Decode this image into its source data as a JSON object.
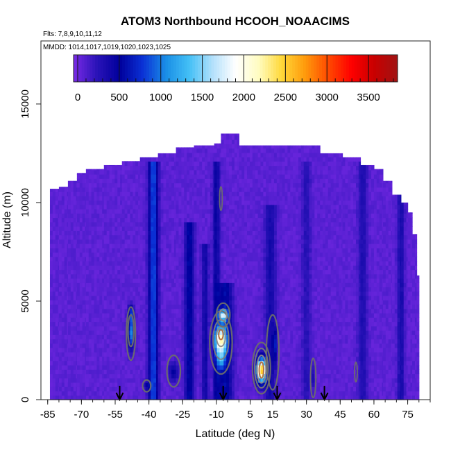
{
  "chart_data": {
    "type": "heatmap",
    "title": "ATOM3 Northbound HCOOH_NOAACIMS",
    "subtitle_flights": "Flts: 7,8,9,10,11,12",
    "subtitle_dates": "MMDD: 1014,1017,1019,1020,1023,1025",
    "xlabel": "Latitude (deg N)",
    "ylabel": "Altitude (m)",
    "xlim": [
      -88,
      85
    ],
    "ylim": [
      0,
      17500
    ],
    "x_tick_labels": [
      "-85",
      "-70",
      "-55",
      "-40",
      "-25",
      "-10",
      "5",
      "15",
      "30",
      "45",
      "60",
      "75"
    ],
    "y_tick_labels": [
      "0",
      "5000",
      "10000",
      "15000"
    ],
    "colorbar": {
      "min": -50,
      "max": 3850,
      "tick_labels": [
        "0",
        "500",
        "1000",
        "1500",
        "2000",
        "2500",
        "3000",
        "3500"
      ],
      "colors": [
        "#7a2ae6",
        "#2a13b8",
        "#00009c",
        "#0b32d6",
        "#1a8fe6",
        "#44c0f6",
        "#b2e0fb",
        "#ffffff",
        "#fffcc0",
        "#ffd838",
        "#ff9a0c",
        "#ff4a00",
        "#ff0000",
        "#c80000",
        "#a01414"
      ]
    },
    "background_value": 60,
    "flight_markers_lat": [
      -53,
      -7,
      17,
      38
    ],
    "envelope": [
      [
        -84,
        0,
        10700
      ],
      [
        -80,
        0,
        10800
      ],
      [
        -76,
        0,
        11100
      ],
      [
        -72,
        0,
        11500
      ],
      [
        -68,
        0,
        11700
      ],
      [
        -60,
        0,
        11900
      ],
      [
        -52,
        0,
        12100
      ],
      [
        -44,
        0,
        12300
      ],
      [
        -36,
        0,
        12500
      ],
      [
        -28,
        0,
        12800
      ],
      [
        -20,
        0,
        12900
      ],
      [
        -11,
        0,
        13000
      ],
      [
        -8,
        0,
        13500
      ],
      [
        0,
        0,
        12900
      ],
      [
        12,
        0,
        12900
      ],
      [
        24,
        0,
        12900
      ],
      [
        36,
        0,
        12500
      ],
      [
        46,
        0,
        12300
      ],
      [
        54,
        0,
        11900
      ],
      [
        60,
        0,
        11700
      ],
      [
        64,
        0,
        11100
      ],
      [
        68,
        0,
        10400
      ],
      [
        72,
        0,
        10000
      ],
      [
        75,
        0,
        9500
      ],
      [
        77,
        0,
        8400
      ],
      [
        79,
        0,
        6300
      ],
      [
        80,
        0,
        1200
      ]
    ],
    "plumes": [
      {
        "lat": -48,
        "alt": 3400,
        "sx": 1.4,
        "sy": 800,
        "peak": 1000
      },
      {
        "lat": -48,
        "alt": 4400,
        "sx": 1.1,
        "sy": 400,
        "peak": 650
      },
      {
        "lat": -29,
        "alt": 1400,
        "sx": 2.2,
        "sy": 500,
        "peak": 420
      },
      {
        "lat": -41,
        "alt": 700,
        "sx": 1.5,
        "sy": 250,
        "peak": 320
      },
      {
        "lat": -8,
        "alt": 3000,
        "sx": 2.5,
        "sy": 700,
        "peak": 1800
      },
      {
        "lat": -7,
        "alt": 4300,
        "sx": 2.0,
        "sy": 280,
        "peak": 1300
      },
      {
        "lat": -8,
        "alt": 2000,
        "sx": 1.5,
        "sy": 450,
        "peak": 700
      },
      {
        "lat": 10,
        "alt": 1500,
        "sx": 2.2,
        "sy": 600,
        "peak": 2500
      },
      {
        "lat": 16,
        "alt": 2800,
        "sx": 1.0,
        "sy": 900,
        "peak": 500
      },
      {
        "lat": 33,
        "alt": 1200,
        "sx": 0.8,
        "sy": 600,
        "peak": 230
      }
    ],
    "bands": [
      {
        "lat": -38,
        "sx": 2.0,
        "depth": 800,
        "top": 12000
      },
      {
        "lat": -22,
        "sx": 2.0,
        "depth": 500,
        "top": 9000
      },
      {
        "lat": -6,
        "sx": 3.0,
        "depth": 500,
        "top": 6000
      },
      {
        "lat": -15,
        "sx": 1.5,
        "depth": 350,
        "top": 8000
      },
      {
        "lat": -10,
        "sx": 1.5,
        "depth": 400,
        "top": 12000
      },
      {
        "lat": 14,
        "sx": 2.5,
        "depth": 300,
        "top": 10000
      },
      {
        "lat": 30,
        "sx": 2.0,
        "depth": 200,
        "top": 12000
      },
      {
        "lat": 55,
        "sx": 2.0,
        "depth": 250,
        "top": 12000
      },
      {
        "lat": 72,
        "sx": 1.5,
        "depth": 300,
        "top": 12000
      }
    ],
    "contours": [
      {
        "lat": -48,
        "alt": 3350,
        "rx": 2.0,
        "ry": 1350,
        "color": "#6d6d6d",
        "width": 2.2
      },
      {
        "lat": -48,
        "alt": 3500,
        "rx": 1.3,
        "ry": 800,
        "color": "#6d6d6d",
        "width": 2.2
      },
      {
        "lat": -29,
        "alt": 1450,
        "rx": 3.0,
        "ry": 800,
        "color": "#6d6d6d",
        "width": 2.2
      },
      {
        "lat": -41,
        "alt": 700,
        "rx": 1.8,
        "ry": 300,
        "color": "#6d6d6d",
        "width": 2.2
      },
      {
        "lat": -8,
        "alt": 2900,
        "rx": 5.0,
        "ry": 1600,
        "color": "#6d6d6d",
        "width": 2.2
      },
      {
        "lat": -8,
        "alt": 3050,
        "rx": 3.5,
        "ry": 1000,
        "color": "#7b7b7b",
        "width": 2
      },
      {
        "lat": -8,
        "alt": 3200,
        "rx": 2.0,
        "ry": 500,
        "color": "#8c8c8c",
        "width": 2
      },
      {
        "lat": -8,
        "alt": 3300,
        "rx": 1.0,
        "ry": 250,
        "color": "#b46a3a",
        "width": 2
      },
      {
        "lat": -7,
        "alt": 4300,
        "rx": 3.0,
        "ry": 600,
        "color": "#6d6d6d",
        "width": 2.2
      },
      {
        "lat": -7,
        "alt": 4300,
        "rx": 1.6,
        "ry": 300,
        "color": "#8c8c8c",
        "width": 2
      },
      {
        "lat": 10,
        "alt": 1600,
        "rx": 4.0,
        "ry": 1300,
        "color": "#6d6d6d",
        "width": 2.2
      },
      {
        "lat": 10,
        "alt": 1600,
        "rx": 3.0,
        "ry": 1000,
        "color": "#7b7b7b",
        "width": 2
      },
      {
        "lat": 10,
        "alt": 1550,
        "rx": 2.0,
        "ry": 700,
        "color": "#8c8c8c",
        "width": 2
      },
      {
        "lat": 10,
        "alt": 1500,
        "rx": 1.0,
        "ry": 400,
        "color": "#b07040",
        "width": 2
      },
      {
        "lat": 15,
        "alt": 2400,
        "rx": 2.8,
        "ry": 1900,
        "color": "#6d6d6d",
        "width": 2.2
      },
      {
        "lat": 33,
        "alt": 1100,
        "rx": 1.2,
        "ry": 1000,
        "color": "#6d6d6d",
        "width": 2
      },
      {
        "lat": -8,
        "alt": 10200,
        "rx": 0.6,
        "ry": 600,
        "color": "#6d6d6d",
        "width": 1.8
      },
      {
        "lat": 52,
        "alt": 1400,
        "rx": 0.6,
        "ry": 500,
        "color": "#6d6d6d",
        "width": 1.8
      }
    ]
  }
}
